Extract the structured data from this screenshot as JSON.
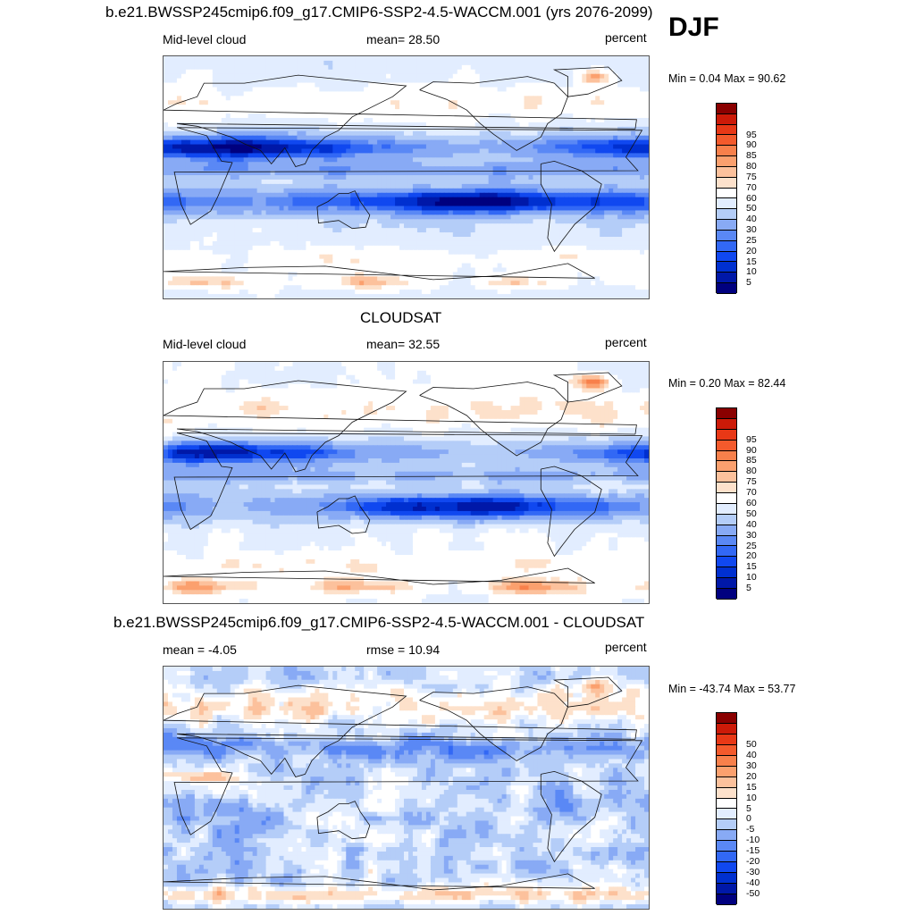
{
  "season": "DJF",
  "panel1": {
    "title": "b.e21.BWSSP245cmip6.f09_g17.CMIP6-SSP2-4.5-WACCM.001 (yrs 2076-2099)",
    "left": "Mid-level cloud",
    "center": "mean=  28.50",
    "right": "percent",
    "minmax": "Min =   0.04 Max =  90.62"
  },
  "panel2": {
    "title": "CLOUDSAT",
    "left": "Mid-level cloud",
    "center": "mean=  32.55",
    "right": "percent",
    "minmax": "Min =   0.20 Max =  82.44"
  },
  "panel3": {
    "title": "b.e21.BWSSP245cmip6.f09_g17.CMIP6-SSP2-4.5-WACCM.001 - CLOUDSAT",
    "left": "mean =  -4.05",
    "center": "rmse =  10.94",
    "right": "percent",
    "minmax": "Min = -43.74 Max =  53.77"
  },
  "chart_data": [
    {
      "type": "heatmap",
      "title": "b.e21.BWSSP245cmip6.f09_g17.CMIP6-SSP2-4.5-WACCM.001 (yrs 2076-2099)",
      "variable": "Mid-level cloud",
      "units": "percent",
      "mean": 28.5,
      "min": 0.04,
      "max": 90.62,
      "colorbar_levels": [
        "5",
        "10",
        "15",
        "20",
        "25",
        "30",
        "40",
        "50",
        "60",
        "70",
        "75",
        "80",
        "85",
        "90",
        "95"
      ],
      "colors": [
        "#00007f",
        "#0018a8",
        "#0030d0",
        "#1048f0",
        "#3268f5",
        "#5a88f5",
        "#88aaf5",
        "#b4cdf8",
        "#e2edff",
        "#ffffff",
        "#fde1cb",
        "#fcc19c",
        "#fba06e",
        "#f8804b",
        "#f45a2c",
        "#e83816",
        "#cc1a08",
        "#8a0000"
      ]
    },
    {
      "type": "heatmap",
      "title": "CLOUDSAT",
      "variable": "Mid-level cloud",
      "units": "percent",
      "mean": 32.55,
      "min": 0.2,
      "max": 82.44,
      "colorbar_levels": [
        "5",
        "10",
        "15",
        "20",
        "25",
        "30",
        "40",
        "50",
        "60",
        "70",
        "75",
        "80",
        "85",
        "90",
        "95"
      ],
      "colors": [
        "#00007f",
        "#0018a8",
        "#0030d0",
        "#1048f0",
        "#3268f5",
        "#5a88f5",
        "#88aaf5",
        "#b4cdf8",
        "#e2edff",
        "#ffffff",
        "#fde1cb",
        "#fcc19c",
        "#fba06e",
        "#f8804b",
        "#f45a2c",
        "#e83816",
        "#cc1a08",
        "#8a0000"
      ]
    },
    {
      "type": "heatmap",
      "title": "b.e21.BWSSP245cmip6.f09_g17.CMIP6-SSP2-4.5-WACCM.001 - CLOUDSAT",
      "units": "percent",
      "mean": -4.05,
      "rmse": 10.94,
      "min": -43.74,
      "max": 53.77,
      "colorbar_levels": [
        "-50",
        "-40",
        "-30",
        "-20",
        "-15",
        "-10",
        "-5",
        "0",
        "5",
        "10",
        "15",
        "20",
        "30",
        "40",
        "50"
      ],
      "colors": [
        "#00007f",
        "#0018a8",
        "#0030d0",
        "#1048f0",
        "#3268f5",
        "#5a88f5",
        "#88aaf5",
        "#b4cdf8",
        "#e2edff",
        "#ffffff",
        "#fde1cb",
        "#fcc19c",
        "#fba06e",
        "#f8804b",
        "#f45a2c",
        "#e83816",
        "#cc1a08",
        "#8a0000"
      ]
    }
  ]
}
